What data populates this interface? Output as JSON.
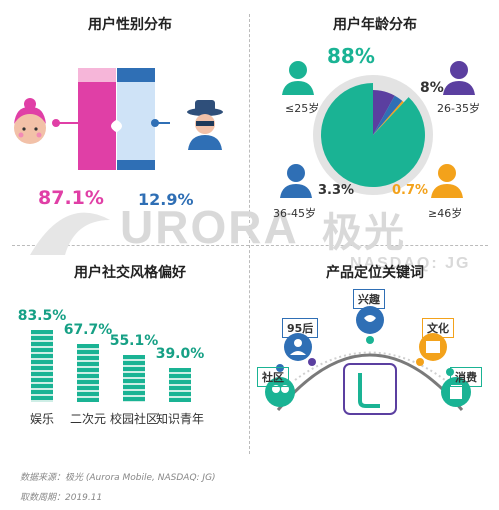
{
  "watermark": {
    "brand": "URORA",
    "cn": "极光",
    "sub": "NASDAQ: JG"
  },
  "chart_data": [
    {
      "type": "bar",
      "title": "用户性别分布",
      "categories": [
        "female",
        "male"
      ],
      "values": [
        87.1,
        12.9
      ],
      "labels": [
        "87.1%",
        "12.9%"
      ],
      "colors": {
        "female": "#e03fa6",
        "male": "#3b82c4"
      }
    },
    {
      "type": "pie",
      "title": "用户年龄分布",
      "categories": [
        "≤25岁",
        "26-35岁",
        "36-45岁",
        "≥46岁"
      ],
      "values": [
        88,
        8,
        3.3,
        0.7
      ],
      "labels": [
        "88%",
        "8%",
        "3.3%",
        "0.7%"
      ],
      "colors": [
        "#1ab394",
        "#5b3fa0",
        "#2f6fb5",
        "#f3a21b"
      ]
    },
    {
      "type": "bar",
      "title": "用户社交风格偏好",
      "categories": [
        "娱乐",
        "二次元",
        "校园社区",
        "知识青年"
      ],
      "values": [
        83.5,
        67.7,
        55.1,
        39.0
      ],
      "labels": [
        "83.5%",
        "67.7%",
        "55.1%",
        "39.0%"
      ]
    }
  ],
  "keywords": {
    "title": "产品定位关键词",
    "items": [
      "社区",
      "95后",
      "兴趣",
      "文化",
      "消费"
    ]
  },
  "footer": {
    "source": "数据来源：极光 (Aurora Mobile, NASDAQ: JG)",
    "period": "取数周期：2019.11"
  }
}
